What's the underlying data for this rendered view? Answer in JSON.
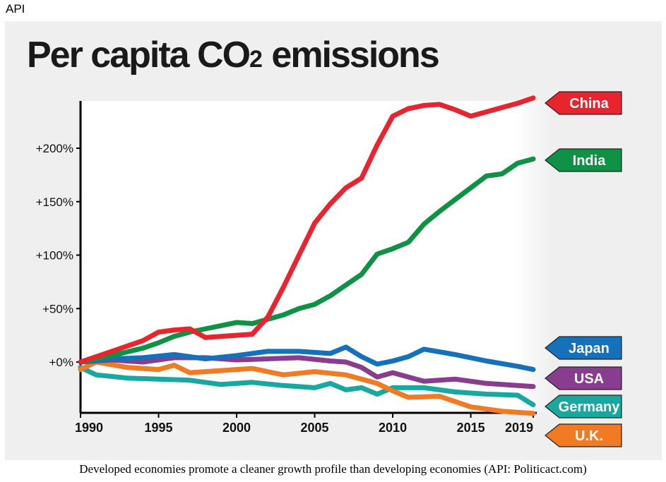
{
  "credit_top": "API",
  "caption": "Developed economies promote a cleaner growth profile than developing economies (API: Politicact.com)",
  "chart_data": {
    "type": "line",
    "title_main": "Per capita CO",
    "title_sub": "2",
    "title_rest": " emissions",
    "xlabel": "",
    "ylabel": "",
    "xlim": [
      1990,
      2019
    ],
    "ylim": [
      -45,
      245
    ],
    "yticks": [
      {
        "value": 0,
        "label": "+0%"
      },
      {
        "value": 50,
        "label": "+50%"
      },
      {
        "value": 100,
        "label": "+100%"
      },
      {
        "value": 150,
        "label": "+150%"
      },
      {
        "value": 200,
        "label": "+200%"
      }
    ],
    "xticks": [
      {
        "value": 1990,
        "label": "1990"
      },
      {
        "value": 1995,
        "label": "1995"
      },
      {
        "value": 2000,
        "label": "2000"
      },
      {
        "value": 2005,
        "label": "2005"
      },
      {
        "value": 2010,
        "label": "2010"
      },
      {
        "value": 2015,
        "label": "2015"
      },
      {
        "value": 2019,
        "label": "2019"
      }
    ],
    "legend": "right-side labels",
    "series": [
      {
        "name": "China",
        "color": "#e8252e",
        "x": [
          1990,
          1992,
          1994,
          1995,
          1996,
          1997,
          1998,
          2000,
          2001,
          2002,
          2003,
          2004,
          2005,
          2006,
          2007,
          2008,
          2009,
          2010,
          2011,
          2012,
          2013,
          2014,
          2015,
          2016,
          2017,
          2018,
          2019
        ],
        "values": [
          0,
          10,
          20,
          28,
          30,
          31,
          23,
          25,
          26,
          42,
          70,
          100,
          130,
          148,
          163,
          172,
          203,
          230,
          237,
          240,
          241,
          236,
          230,
          234,
          238,
          242,
          247
        ]
      },
      {
        "name": "India",
        "color": "#0f9246",
        "x": [
          1990,
          1992,
          1994,
          1995,
          1996,
          1997,
          1998,
          2000,
          2001,
          2002,
          2003,
          2004,
          2005,
          2006,
          2007,
          2008,
          2009,
          2010,
          2011,
          2012,
          2013,
          2014,
          2015,
          2016,
          2017,
          2018,
          2019
        ],
        "values": [
          0,
          6,
          13,
          18,
          24,
          28,
          31,
          37,
          36,
          40,
          44,
          50,
          54,
          62,
          72,
          82,
          101,
          106,
          112,
          129,
          141,
          152,
          163,
          174,
          176,
          186,
          190
        ]
      },
      {
        "name": "Japan",
        "color": "#1572ba",
        "x": [
          1990,
          1992,
          1994,
          1996,
          1998,
          2000,
          2002,
          2004,
          2006,
          2007,
          2008,
          2009,
          2010,
          2011,
          2012,
          2014,
          2016,
          2018,
          2019
        ],
        "values": [
          0,
          3,
          4,
          7,
          3,
          6,
          10,
          10,
          8,
          14,
          5,
          -2,
          1,
          5,
          12,
          7,
          1,
          -4,
          -7
        ]
      },
      {
        "name": "USA",
        "color": "#883d8e",
        "x": [
          1990,
          1992,
          1994,
          1996,
          1998,
          2000,
          2002,
          2004,
          2006,
          2007,
          2008,
          2009,
          2010,
          2011,
          2012,
          2014,
          2016,
          2018,
          2019
        ],
        "values": [
          0,
          2,
          0,
          4,
          4,
          2,
          3,
          4,
          1,
          0,
          -5,
          -14,
          -10,
          -14,
          -18,
          -16,
          -20,
          -22,
          -23
        ]
      },
      {
        "name": "Germany",
        "color": "#19a8a0",
        "x": [
          1990,
          1991,
          1993,
          1995,
          1997,
          1999,
          2001,
          2003,
          2005,
          2006,
          2007,
          2008,
          2009,
          2010,
          2012,
          2014,
          2016,
          2018,
          2019
        ],
        "values": [
          -5,
          -12,
          -15,
          -16,
          -17,
          -21,
          -19,
          -22,
          -24,
          -20,
          -26,
          -24,
          -30,
          -24,
          -24,
          -28,
          -30,
          -31,
          -40
        ]
      },
      {
        "name": "U.K.",
        "color": "#f07b23",
        "x": [
          1990,
          1991,
          1993,
          1995,
          1996,
          1997,
          1999,
          2001,
          2003,
          2005,
          2007,
          2009,
          2010,
          2011,
          2013,
          2015,
          2017,
          2019
        ],
        "values": [
          -7,
          0,
          -5,
          -7,
          -3,
          -10,
          -8,
          -6,
          -12,
          -9,
          -12,
          -20,
          -27,
          -33,
          -32,
          -42,
          -46,
          -48
        ]
      }
    ]
  }
}
